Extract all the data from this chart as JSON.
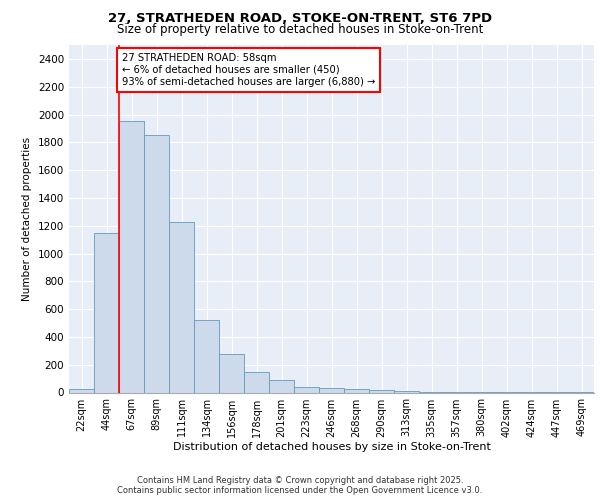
{
  "title1": "27, STRATHEDEN ROAD, STOKE-ON-TRENT, ST6 7PD",
  "title2": "Size of property relative to detached houses in Stoke-on-Trent",
  "xlabel": "Distribution of detached houses by size in Stoke-on-Trent",
  "ylabel": "Number of detached properties",
  "bar_labels": [
    "22sqm",
    "44sqm",
    "67sqm",
    "89sqm",
    "111sqm",
    "134sqm",
    "156sqm",
    "178sqm",
    "201sqm",
    "223sqm",
    "246sqm",
    "268sqm",
    "290sqm",
    "313sqm",
    "335sqm",
    "357sqm",
    "380sqm",
    "402sqm",
    "424sqm",
    "447sqm",
    "469sqm"
  ],
  "bar_values": [
    25,
    1150,
    1950,
    1850,
    1230,
    520,
    280,
    150,
    90,
    40,
    35,
    25,
    15,
    8,
    5,
    3,
    2,
    2,
    1,
    1,
    1
  ],
  "bar_color": "#ccdaeb",
  "bar_edge_color": "#6699bb",
  "vline_x": 1.5,
  "vline_color": "red",
  "annotation_title": "27 STRATHEDEN ROAD: 58sqm",
  "annotation_line1": "← 6% of detached houses are smaller (450)",
  "annotation_line2": "93% of semi-detached houses are larger (6,880) →",
  "annotation_box_color": "white",
  "annotation_box_edge": "red",
  "ylim": [
    0,
    2500
  ],
  "yticks": [
    0,
    200,
    400,
    600,
    800,
    1000,
    1200,
    1400,
    1600,
    1800,
    2000,
    2200,
    2400
  ],
  "bg_color": "#e8eef8",
  "footnote1": "Contains HM Land Registry data © Crown copyright and database right 2025.",
  "footnote2": "Contains public sector information licensed under the Open Government Licence v3.0."
}
